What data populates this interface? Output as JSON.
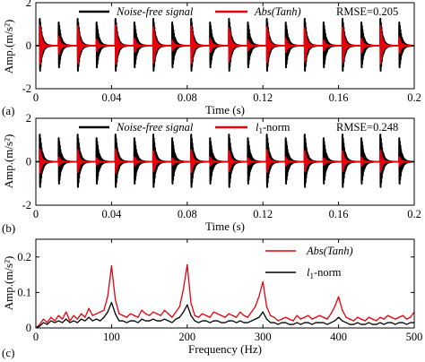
{
  "chart_data": [
    {
      "type": "line",
      "panel_label": "(a)",
      "xlabel": "Time (s)",
      "ylabel": "Amp.(m/s²)",
      "xlim": [
        0,
        0.2
      ],
      "ylim": [
        -2,
        2
      ],
      "xticks": [
        0,
        0.04,
        0.08,
        0.12,
        0.16,
        0.2
      ],
      "xtick_labels": [
        "0",
        "0.04",
        "0.08",
        "0.12",
        "0.16",
        "0.2"
      ],
      "yticks": [
        -2,
        0,
        2
      ],
      "ytick_labels": [
        "-2",
        "0",
        "2"
      ],
      "annotation": "RMSE=0.205",
      "legend_position": "top",
      "impact_period_s": 0.01,
      "series": [
        {
          "name": "Noise-free signal",
          "color": "#000000",
          "line_width": 2,
          "peak_amplitudes": [
            1.5,
            1.3,
            1.5,
            1.3,
            1.5,
            1.3,
            1.5,
            1.3,
            1.5,
            1.3,
            1.5,
            1.3,
            1.5,
            1.3,
            1.5,
            1.3,
            1.5,
            1.3,
            1.5,
            1.3
          ],
          "decay_per_ms": 0.45
        },
        {
          "name": "Abs(Tanh)",
          "color": "#e8000b",
          "line_width": 2,
          "peak_amplitudes": [
            1.15,
            0.5,
            1.1,
            0.35,
            1.15,
            0.4,
            1.05,
            0.3,
            1.1,
            0.4,
            1.0,
            0.3,
            1.05,
            0.4,
            1.0,
            0.3,
            1.05,
            0.4,
            1.1,
            0.45
          ],
          "decay_per_ms": 0.55
        }
      ]
    },
    {
      "type": "line",
      "panel_label": "(b)",
      "xlabel": "Time (s)",
      "ylabel": "Amp.(m/s²)",
      "xlim": [
        0,
        0.2
      ],
      "ylim": [
        -2,
        2
      ],
      "xticks": [
        0,
        0.04,
        0.08,
        0.12,
        0.16,
        0.2
      ],
      "xtick_labels": [
        "0",
        "0.04",
        "0.08",
        "0.12",
        "0.16",
        "0.2"
      ],
      "yticks": [
        -2,
        0,
        2
      ],
      "ytick_labels": [
        "-2",
        "0",
        "2"
      ],
      "annotation": "RMSE=0.248",
      "legend_position": "top",
      "impact_period_s": 0.01,
      "series": [
        {
          "name": "Noise-free signal",
          "color": "#000000",
          "line_width": 2,
          "peak_amplitudes": [
            1.5,
            1.3,
            1.5,
            1.3,
            1.5,
            1.3,
            1.5,
            1.3,
            1.5,
            1.3,
            1.5,
            1.3,
            1.5,
            1.3,
            1.5,
            1.3,
            1.5,
            1.3,
            1.5,
            1.3
          ],
          "decay_per_ms": 0.45
        },
        {
          "name": "l1-norm",
          "color": "#e8000b",
          "line_width": 2,
          "peak_amplitudes": [
            0.7,
            0.25,
            0.65,
            0.2,
            0.7,
            0.25,
            0.6,
            0.2,
            0.65,
            0.25,
            0.6,
            0.2,
            0.65,
            0.25,
            0.6,
            0.2,
            0.6,
            0.25,
            0.65,
            0.25
          ],
          "decay_per_ms": 0.6
        }
      ]
    },
    {
      "type": "line",
      "panel_label": "(c)",
      "xlabel": "Frequency (Hz)",
      "ylabel": "Amp.(m/s²)",
      "xlim": [
        0,
        500
      ],
      "ylim": [
        0,
        0.25
      ],
      "xticks": [
        0,
        100,
        200,
        300,
        400,
        500
      ],
      "xtick_labels": [
        "0",
        "100",
        "200",
        "300",
        "400",
        "500"
      ],
      "yticks": [
        0,
        0.1,
        0.2
      ],
      "ytick_labels": [
        "0",
        "0.1",
        "0.2"
      ],
      "legend_position": "top-right",
      "series": [
        {
          "name": "Abs(Tanh)",
          "color": "#e8000b",
          "line_width": 1.3,
          "x": [
            0,
            5,
            10,
            15,
            20,
            25,
            30,
            35,
            40,
            45,
            50,
            55,
            60,
            65,
            70,
            75,
            80,
            85,
            90,
            95,
            100,
            105,
            110,
            115,
            120,
            125,
            130,
            135,
            140,
            145,
            150,
            155,
            160,
            165,
            170,
            175,
            180,
            185,
            190,
            195,
            200,
            205,
            210,
            215,
            220,
            225,
            230,
            235,
            240,
            245,
            250,
            255,
            260,
            265,
            270,
            275,
            280,
            285,
            290,
            295,
            300,
            305,
            310,
            315,
            320,
            325,
            330,
            335,
            340,
            345,
            350,
            355,
            360,
            365,
            370,
            375,
            380,
            385,
            390,
            395,
            400,
            405,
            410,
            415,
            420,
            425,
            430,
            435,
            440,
            445,
            450,
            455,
            460,
            465,
            470,
            475,
            480,
            485,
            490,
            495,
            500
          ],
          "values": [
            0.0,
            0.01,
            0.025,
            0.015,
            0.03,
            0.02,
            0.035,
            0.025,
            0.045,
            0.02,
            0.035,
            0.025,
            0.04,
            0.03,
            0.055,
            0.035,
            0.04,
            0.045,
            0.05,
            0.09,
            0.175,
            0.08,
            0.04,
            0.035,
            0.03,
            0.04,
            0.035,
            0.03,
            0.05,
            0.04,
            0.035,
            0.045,
            0.04,
            0.035,
            0.05,
            0.04,
            0.03,
            0.045,
            0.06,
            0.11,
            0.178,
            0.07,
            0.035,
            0.03,
            0.04,
            0.035,
            0.03,
            0.045,
            0.04,
            0.035,
            0.03,
            0.04,
            0.035,
            0.03,
            0.045,
            0.035,
            0.03,
            0.045,
            0.06,
            0.09,
            0.13,
            0.06,
            0.035,
            0.03,
            0.02,
            0.025,
            0.03,
            0.025,
            0.02,
            0.035,
            0.025,
            0.03,
            0.035,
            0.025,
            0.03,
            0.035,
            0.03,
            0.025,
            0.04,
            0.06,
            0.088,
            0.05,
            0.03,
            0.025,
            0.02,
            0.03,
            0.025,
            0.02,
            0.03,
            0.025,
            0.02,
            0.03,
            0.025,
            0.035,
            0.03,
            0.025,
            0.03,
            0.035,
            0.025,
            0.03,
            0.045
          ]
        },
        {
          "name": "l1-norm",
          "color": "#000000",
          "line_width": 1.3,
          "x": [
            0,
            5,
            10,
            15,
            20,
            25,
            30,
            35,
            40,
            45,
            50,
            55,
            60,
            65,
            70,
            75,
            80,
            85,
            90,
            95,
            100,
            105,
            110,
            115,
            120,
            125,
            130,
            135,
            140,
            145,
            150,
            155,
            160,
            165,
            170,
            175,
            180,
            185,
            190,
            195,
            200,
            205,
            210,
            215,
            220,
            225,
            230,
            235,
            240,
            245,
            250,
            255,
            260,
            265,
            270,
            275,
            280,
            285,
            290,
            295,
            300,
            305,
            310,
            315,
            320,
            325,
            330,
            335,
            340,
            345,
            350,
            355,
            360,
            365,
            370,
            375,
            380,
            385,
            390,
            395,
            400,
            405,
            410,
            415,
            420,
            425,
            430,
            435,
            440,
            445,
            450,
            455,
            460,
            465,
            470,
            475,
            480,
            485,
            490,
            495,
            500
          ],
          "values": [
            0.0,
            0.005,
            0.015,
            0.01,
            0.02,
            0.015,
            0.02,
            0.015,
            0.025,
            0.015,
            0.02,
            0.015,
            0.025,
            0.02,
            0.03,
            0.02,
            0.025,
            0.02,
            0.03,
            0.045,
            0.072,
            0.04,
            0.02,
            0.02,
            0.015,
            0.02,
            0.02,
            0.015,
            0.025,
            0.02,
            0.02,
            0.025,
            0.02,
            0.02,
            0.025,
            0.02,
            0.015,
            0.025,
            0.03,
            0.045,
            0.065,
            0.035,
            0.02,
            0.015,
            0.02,
            0.02,
            0.015,
            0.02,
            0.02,
            0.015,
            0.015,
            0.02,
            0.02,
            0.015,
            0.02,
            0.015,
            0.015,
            0.02,
            0.025,
            0.03,
            0.045,
            0.025,
            0.015,
            0.015,
            0.01,
            0.015,
            0.015,
            0.01,
            0.01,
            0.015,
            0.01,
            0.015,
            0.015,
            0.01,
            0.015,
            0.015,
            0.015,
            0.01,
            0.015,
            0.02,
            0.03,
            0.02,
            0.015,
            0.01,
            0.01,
            0.015,
            0.01,
            0.01,
            0.015,
            0.01,
            0.01,
            0.015,
            0.01,
            0.015,
            0.015,
            0.01,
            0.015,
            0.015,
            0.01,
            0.015,
            0.015
          ]
        }
      ]
    }
  ]
}
